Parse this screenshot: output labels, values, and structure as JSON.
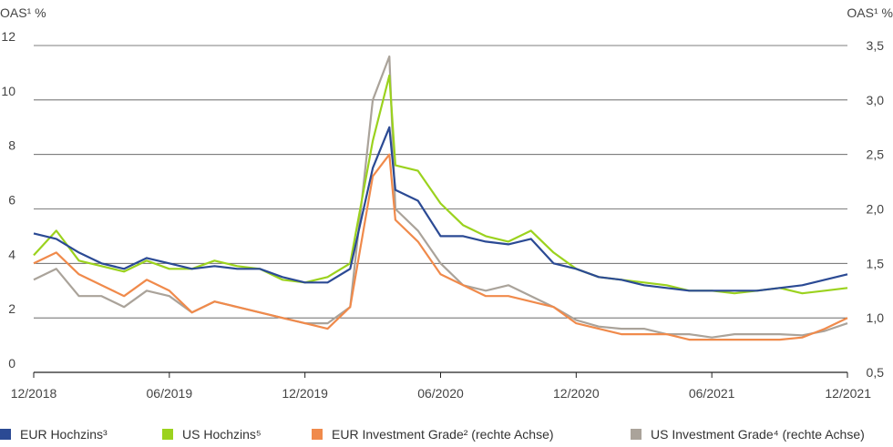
{
  "chart_data": {
    "type": "line",
    "title": "",
    "ylabel_left": "OAS¹ %",
    "ylabel_right": "OAS¹ %",
    "ylim_left": [
      0,
      12
    ],
    "ylim_right": [
      0.5,
      3.5
    ],
    "yticks_left": [
      "0",
      "2",
      "4",
      "6",
      "8",
      "10",
      "12"
    ],
    "yticks_right": [
      "0,5",
      "1,0",
      "1,5",
      "2,0",
      "2,5",
      "3,0",
      "3,5"
    ],
    "xlim": [
      "2018-12",
      "2021-12"
    ],
    "xticks": [
      "12/2018",
      "06/2019",
      "12/2019",
      "06/2020",
      "12/2020",
      "06/2021",
      "12/2021"
    ],
    "grid": "horizontal",
    "legend_position": "bottom",
    "series": [
      {
        "name": "EUR Hochzins³",
        "axis": "left",
        "color": "#2b4a94",
        "x": [
          "2018-12",
          "2019-01",
          "2019-02",
          "2019-03",
          "2019-04",
          "2019-05",
          "2019-06",
          "2019-07",
          "2019-08",
          "2019-09",
          "2019-10",
          "2019-11",
          "2019-12",
          "2020-01",
          "2020-02",
          "2020-03",
          "2020-03-23",
          "2020-04",
          "2020-05",
          "2020-06",
          "2020-07",
          "2020-08",
          "2020-09",
          "2020-10",
          "2020-11",
          "2020-12",
          "2021-01",
          "2021-02",
          "2021-03",
          "2021-04",
          "2021-05",
          "2021-06",
          "2021-07",
          "2021-08",
          "2021-09",
          "2021-10",
          "2021-11",
          "2021-12"
        ],
        "values": [
          5.1,
          4.9,
          4.4,
          4.0,
          3.8,
          4.2,
          4.0,
          3.8,
          3.9,
          3.8,
          3.8,
          3.5,
          3.3,
          3.3,
          3.8,
          7.5,
          9.0,
          6.7,
          6.3,
          5.0,
          5.0,
          4.8,
          4.7,
          4.9,
          4.0,
          3.8,
          3.5,
          3.4,
          3.2,
          3.1,
          3.0,
          3.0,
          3.0,
          3.0,
          3.1,
          3.2,
          3.4,
          3.6
        ]
      },
      {
        "name": "US Hochzins⁵",
        "axis": "left",
        "color": "#9bd21e",
        "x": [
          "2018-12",
          "2019-01",
          "2019-02",
          "2019-03",
          "2019-04",
          "2019-05",
          "2019-06",
          "2019-07",
          "2019-08",
          "2019-09",
          "2019-10",
          "2019-11",
          "2019-12",
          "2020-01",
          "2020-02",
          "2020-03",
          "2020-03-23",
          "2020-04",
          "2020-05",
          "2020-06",
          "2020-07",
          "2020-08",
          "2020-09",
          "2020-10",
          "2020-11",
          "2020-12",
          "2021-01",
          "2021-02",
          "2021-03",
          "2021-04",
          "2021-05",
          "2021-06",
          "2021-07",
          "2021-08",
          "2021-09",
          "2021-10",
          "2021-11",
          "2021-12"
        ],
        "values": [
          4.3,
          5.2,
          4.1,
          3.9,
          3.7,
          4.1,
          3.8,
          3.8,
          4.1,
          3.9,
          3.8,
          3.4,
          3.3,
          3.5,
          4.0,
          8.5,
          10.9,
          7.6,
          7.4,
          6.2,
          5.4,
          5.0,
          4.8,
          5.2,
          4.4,
          3.8,
          3.5,
          3.4,
          3.3,
          3.2,
          3.0,
          3.0,
          2.9,
          3.0,
          3.1,
          2.9,
          3.0,
          3.1
        ]
      },
      {
        "name": "EUR Investment Grade² (rechte Achse)",
        "axis": "right",
        "color": "#f08a4b",
        "x": [
          "2018-12",
          "2019-01",
          "2019-02",
          "2019-03",
          "2019-04",
          "2019-05",
          "2019-06",
          "2019-07",
          "2019-08",
          "2019-09",
          "2019-10",
          "2019-11",
          "2019-12",
          "2020-01",
          "2020-02",
          "2020-03",
          "2020-03-23",
          "2020-04",
          "2020-05",
          "2020-06",
          "2020-07",
          "2020-08",
          "2020-09",
          "2020-10",
          "2020-11",
          "2020-12",
          "2021-01",
          "2021-02",
          "2021-03",
          "2021-04",
          "2021-05",
          "2021-06",
          "2021-07",
          "2021-08",
          "2021-09",
          "2021-10",
          "2021-11",
          "2021-12"
        ],
        "values": [
          1.5,
          1.6,
          1.4,
          1.3,
          1.2,
          1.35,
          1.25,
          1.05,
          1.15,
          1.1,
          1.05,
          1.0,
          0.95,
          0.9,
          1.1,
          2.3,
          2.5,
          1.9,
          1.7,
          1.4,
          1.3,
          1.2,
          1.2,
          1.15,
          1.1,
          0.95,
          0.9,
          0.85,
          0.85,
          0.85,
          0.8,
          0.8,
          0.8,
          0.8,
          0.8,
          0.82,
          0.9,
          1.0
        ]
      },
      {
        "name": "US Investment Grade⁴ (rechte Achse)",
        "axis": "right",
        "color": "#aaa39a",
        "x": [
          "2018-12",
          "2019-01",
          "2019-02",
          "2019-03",
          "2019-04",
          "2019-05",
          "2019-06",
          "2019-07",
          "2019-08",
          "2019-09",
          "2019-10",
          "2019-11",
          "2019-12",
          "2020-01",
          "2020-02",
          "2020-03",
          "2020-03-23",
          "2020-04",
          "2020-05",
          "2020-06",
          "2020-07",
          "2020-08",
          "2020-09",
          "2020-10",
          "2020-11",
          "2020-12",
          "2021-01",
          "2021-02",
          "2021-03",
          "2021-04",
          "2021-05",
          "2021-06",
          "2021-07",
          "2021-08",
          "2021-09",
          "2021-10",
          "2021-11",
          "2021-12"
        ],
        "values": [
          1.35,
          1.45,
          1.2,
          1.2,
          1.1,
          1.25,
          1.2,
          1.05,
          1.15,
          1.1,
          1.05,
          1.0,
          0.95,
          0.95,
          1.1,
          3.0,
          3.4,
          2.0,
          1.8,
          1.5,
          1.3,
          1.25,
          1.3,
          1.2,
          1.1,
          0.98,
          0.92,
          0.9,
          0.9,
          0.85,
          0.85,
          0.82,
          0.85,
          0.85,
          0.85,
          0.84,
          0.88,
          0.95
        ]
      }
    ]
  }
}
